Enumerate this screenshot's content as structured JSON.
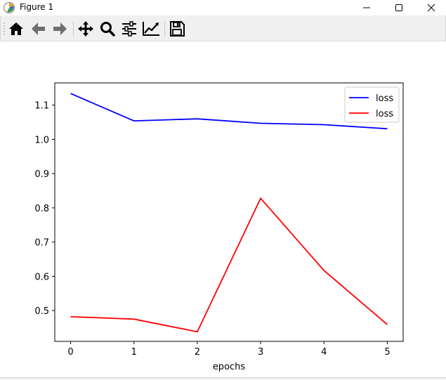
{
  "window": {
    "title": "Figure 1",
    "app_icon": "matplotlib-figure-icon",
    "controls": [
      "minimize-icon",
      "maximize-icon",
      "close-icon"
    ]
  },
  "toolbar": {
    "buttons": [
      {
        "name": "home",
        "icon": "home-icon"
      },
      {
        "name": "back",
        "icon": "arrow-left-icon"
      },
      {
        "name": "forward",
        "icon": "arrow-right-icon"
      },
      {
        "name": "pan",
        "icon": "move-arrows-icon"
      },
      {
        "name": "zoom",
        "icon": "magnifier-icon"
      },
      {
        "name": "configure-subplots",
        "icon": "sliders-icon"
      },
      {
        "name": "edit-axis",
        "icon": "line-chart-icon"
      },
      {
        "name": "save",
        "icon": "floppy-disk-icon"
      }
    ]
  },
  "chart_data": {
    "type": "line",
    "title": "",
    "xlabel": "epochs",
    "ylabel": "",
    "x": [
      0,
      1,
      2,
      3,
      4,
      5
    ],
    "xticks": [
      "0",
      "1",
      "2",
      "3",
      "4",
      "5"
    ],
    "yticks": [
      "0.5",
      "0.6",
      "0.7",
      "0.8",
      "0.9",
      "1.0",
      "1.1"
    ],
    "xlim": [
      -0.25,
      5.25
    ],
    "ylim": [
      0.41,
      1.165
    ],
    "grid": false,
    "legend_position": "upper right",
    "series": [
      {
        "name": "loss",
        "color": "#0000ff",
        "values": [
          1.134,
          1.054,
          1.06,
          1.047,
          1.043,
          1.031
        ]
      },
      {
        "name": "loss",
        "color": "#ff0000",
        "values": [
          0.482,
          0.475,
          0.438,
          0.828,
          0.617,
          0.459
        ]
      }
    ]
  }
}
